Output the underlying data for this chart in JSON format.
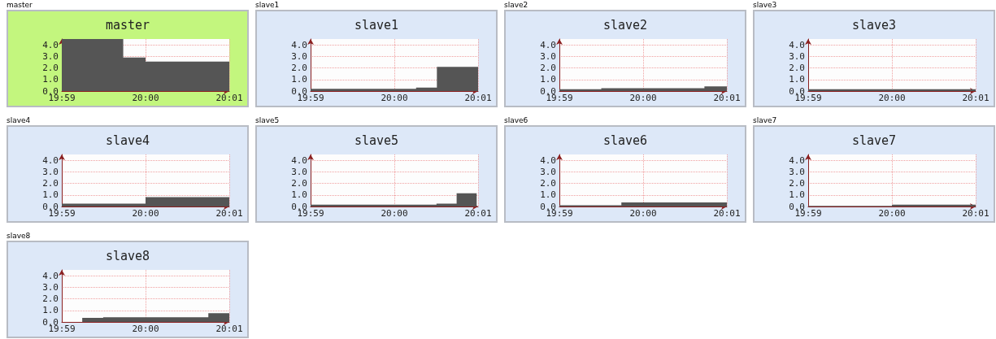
{
  "chart_data": [
    {
      "type": "area",
      "title": "master",
      "annotations": [
        "master"
      ],
      "xlim": [
        19.98333,
        20.01667
      ],
      "xticks": [
        {
          "value": 19.98333,
          "label": "19:59"
        },
        {
          "value": 20,
          "label": "20:00"
        },
        {
          "value": 20.01667,
          "label": "20:01"
        }
      ],
      "ylim": [
        0,
        4.5
      ],
      "yticks": [
        {
          "value": 0,
          "label": "0.0"
        },
        {
          "value": 1,
          "label": "1.0"
        },
        {
          "value": 2,
          "label": "2.0"
        },
        {
          "value": 3,
          "label": "3.0"
        },
        {
          "value": 4,
          "label": "4.0"
        }
      ],
      "grid": true,
      "series": [
        {
          "color": "#555555",
          "x": [
            19.98333,
            19.99556,
            20.0,
            20.01667
          ],
          "values": [
            4.5,
            2.9,
            2.55,
            2.55
          ]
        }
      ]
    },
    {
      "type": "area",
      "title": "slave1",
      "annotations": [
        "slave1"
      ],
      "xlim": [
        19.98333,
        20.01667
      ],
      "xticks": [
        {
          "value": 19.98333,
          "label": "19:59"
        },
        {
          "value": 20,
          "label": "20:00"
        },
        {
          "value": 20.01667,
          "label": "20:01"
        }
      ],
      "ylim": [
        0,
        4.5
      ],
      "yticks": [
        {
          "value": 0,
          "label": "0.0"
        },
        {
          "value": 1,
          "label": "1.0"
        },
        {
          "value": 2,
          "label": "2.0"
        },
        {
          "value": 3,
          "label": "3.0"
        },
        {
          "value": 4,
          "label": "4.0"
        }
      ],
      "grid": true,
      "series": [
        {
          "color": "#555555",
          "x": [
            19.98333,
            20.00433,
            20.00847,
            20.01667
          ],
          "values": [
            0.2,
            0.3,
            2.1,
            2.1
          ]
        }
      ]
    },
    {
      "type": "area",
      "title": "slave2",
      "annotations": [
        "slave2"
      ],
      "xlim": [
        19.98333,
        20.01667
      ],
      "xticks": [
        {
          "value": 19.98333,
          "label": "19:59"
        },
        {
          "value": 20,
          "label": "20:00"
        },
        {
          "value": 20.01667,
          "label": "20:01"
        }
      ],
      "ylim": [
        0,
        4.5
      ],
      "yticks": [
        {
          "value": 0,
          "label": "0.0"
        },
        {
          "value": 1,
          "label": "1.0"
        },
        {
          "value": 2,
          "label": "2.0"
        },
        {
          "value": 3,
          "label": "3.0"
        },
        {
          "value": 4,
          "label": "4.0"
        }
      ],
      "grid": true,
      "series": [
        {
          "color": "#555555",
          "x": [
            19.98333,
            19.99167,
            20.0122,
            20.01667
          ],
          "values": [
            0.15,
            0.25,
            0.4,
            0.4
          ]
        }
      ]
    },
    {
      "type": "area",
      "title": "slave3",
      "annotations": [
        "slave3"
      ],
      "xlim": [
        19.98333,
        20.01667
      ],
      "xticks": [
        {
          "value": 19.98333,
          "label": "19:59"
        },
        {
          "value": 20,
          "label": "20:00"
        },
        {
          "value": 20.01667,
          "label": "20:01"
        }
      ],
      "ylim": [
        0,
        4.5
      ],
      "yticks": [
        {
          "value": 0,
          "label": "0.0"
        },
        {
          "value": 1,
          "label": "1.0"
        },
        {
          "value": 2,
          "label": "2.0"
        },
        {
          "value": 3,
          "label": "3.0"
        },
        {
          "value": 4,
          "label": "4.0"
        }
      ],
      "grid": true,
      "series": [
        {
          "color": "#555555",
          "x": [
            19.98333,
            20.01667
          ],
          "values": [
            0.15,
            0.15
          ]
        }
      ]
    },
    {
      "type": "area",
      "title": "slave4",
      "annotations": [
        "slave4"
      ],
      "xlim": [
        19.98333,
        20.01667
      ],
      "xticks": [
        {
          "value": 19.98333,
          "label": "19:59"
        },
        {
          "value": 20,
          "label": "20:00"
        },
        {
          "value": 20.01667,
          "label": "20:01"
        }
      ],
      "ylim": [
        0,
        4.5
      ],
      "yticks": [
        {
          "value": 0,
          "label": "0.0"
        },
        {
          "value": 1,
          "label": "1.0"
        },
        {
          "value": 2,
          "label": "2.0"
        },
        {
          "value": 3,
          "label": "3.0"
        },
        {
          "value": 4,
          "label": "4.0"
        }
      ],
      "grid": true,
      "series": [
        {
          "color": "#555555",
          "x": [
            19.98333,
            20.0,
            20.01667
          ],
          "values": [
            0.25,
            0.8,
            0.8
          ]
        }
      ]
    },
    {
      "type": "area",
      "title": "slave5",
      "annotations": [
        "slave5"
      ],
      "xlim": [
        19.98333,
        20.01667
      ],
      "xticks": [
        {
          "value": 19.98333,
          "label": "19:59"
        },
        {
          "value": 20,
          "label": "20:00"
        },
        {
          "value": 20.01667,
          "label": "20:01"
        }
      ],
      "ylim": [
        0,
        4.5
      ],
      "yticks": [
        {
          "value": 0,
          "label": "0.0"
        },
        {
          "value": 1,
          "label": "1.0"
        },
        {
          "value": 2,
          "label": "2.0"
        },
        {
          "value": 3,
          "label": "3.0"
        },
        {
          "value": 4,
          "label": "4.0"
        }
      ],
      "grid": true,
      "series": [
        {
          "color": "#555555",
          "x": [
            19.98333,
            20.00839,
            20.0124,
            20.01639
          ],
          "values": [
            0.15,
            0.25,
            1.15,
            1.15
          ]
        }
      ]
    },
    {
      "type": "area",
      "title": "slave6",
      "annotations": [
        "slave6"
      ],
      "xlim": [
        19.98333,
        20.01667
      ],
      "xticks": [
        {
          "value": 19.98333,
          "label": "19:59"
        },
        {
          "value": 20,
          "label": "20:00"
        },
        {
          "value": 20.01667,
          "label": "20:01"
        }
      ],
      "ylim": [
        0,
        4.5
      ],
      "yticks": [
        {
          "value": 0,
          "label": "0.0"
        },
        {
          "value": 1,
          "label": "1.0"
        },
        {
          "value": 2,
          "label": "2.0"
        },
        {
          "value": 3,
          "label": "3.0"
        },
        {
          "value": 4,
          "label": "4.0"
        }
      ],
      "grid": true,
      "series": [
        {
          "color": "#555555",
          "x": [
            19.98333,
            19.99567,
            20.01667
          ],
          "values": [
            0.1,
            0.35,
            0.35
          ]
        }
      ]
    },
    {
      "type": "area",
      "title": "slave7",
      "annotations": [
        "slave7"
      ],
      "xlim": [
        19.98333,
        20.01667
      ],
      "xticks": [
        {
          "value": 19.98333,
          "label": "19:59"
        },
        {
          "value": 20,
          "label": "20:00"
        },
        {
          "value": 20.01667,
          "label": "20:01"
        }
      ],
      "ylim": [
        0,
        4.5
      ],
      "yticks": [
        {
          "value": 0,
          "label": "0.0"
        },
        {
          "value": 1,
          "label": "1.0"
        },
        {
          "value": 2,
          "label": "2.0"
        },
        {
          "value": 3,
          "label": "3.0"
        },
        {
          "value": 4,
          "label": "4.0"
        }
      ],
      "grid": true,
      "series": [
        {
          "color": "#555555",
          "x": [
            19.98333,
            20.0,
            20.01667
          ],
          "values": [
            0.05,
            0.15,
            0.15
          ]
        }
      ]
    },
    {
      "type": "area",
      "title": "slave8",
      "annotations": [
        "slave8"
      ],
      "xlim": [
        19.98333,
        20.01667
      ],
      "xticks": [
        {
          "value": 19.98333,
          "label": "19:59"
        },
        {
          "value": 20,
          "label": "20:00"
        },
        {
          "value": 20.01667,
          "label": "20:01"
        }
      ],
      "ylim": [
        0,
        4.5
      ],
      "yticks": [
        {
          "value": 0,
          "label": "0.0"
        },
        {
          "value": 1,
          "label": "1.0"
        },
        {
          "value": 2,
          "label": "2.0"
        },
        {
          "value": 3,
          "label": "3.0"
        },
        {
          "value": 4,
          "label": "4.0"
        }
      ],
      "grid": true,
      "series": [
        {
          "color": "#555555",
          "x": [
            19.98333,
            19.9874,
            19.99157,
            20.0125,
            20.01667
          ],
          "values": [
            0,
            0.35,
            0.4,
            0.75,
            0.75
          ]
        }
      ]
    }
  ]
}
